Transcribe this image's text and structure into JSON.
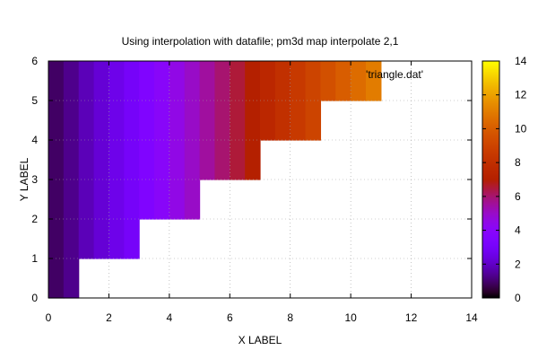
{
  "chart_data": {
    "type": "heatmap",
    "title": "Using interpolation with datafile; pm3d map interpolate 2,1",
    "xlabel": "X LABEL",
    "ylabel": "Y LABEL",
    "xlim": [
      0,
      14
    ],
    "ylim": [
      0,
      6
    ],
    "x_ticks": [
      "0",
      "2",
      "4",
      "6",
      "8",
      "10",
      "12",
      "14"
    ],
    "y_ticks": [
      "0",
      "1",
      "2",
      "3",
      "4",
      "5",
      "6"
    ],
    "grid": true,
    "legend": {
      "label": "'triangle.dat'",
      "position": "top-right"
    },
    "colorbar": {
      "range": [
        0,
        14
      ],
      "ticks": [
        "0",
        "2",
        "4",
        "6",
        "8",
        "10",
        "12",
        "14"
      ],
      "palette": "black-blue-red-yellow"
    },
    "cell_width": 0.5,
    "rows": [
      {
        "y": [
          0,
          1
        ],
        "x_max": 1,
        "values": [
          0.9,
          1.3
        ]
      },
      {
        "y": [
          1,
          2
        ],
        "x_max": 3,
        "values": [
          0.9,
          1.3,
          1.8,
          2.2,
          2.6,
          3.0
        ]
      },
      {
        "y": [
          2,
          3
        ],
        "x_max": 5,
        "values": [
          0.9,
          1.3,
          1.8,
          2.2,
          2.6,
          3.0,
          3.5,
          4.0,
          4.5,
          5.0
        ]
      },
      {
        "y": [
          3,
          4
        ],
        "x_max": 7,
        "values": [
          0.9,
          1.3,
          1.8,
          2.2,
          2.6,
          3.0,
          3.5,
          4.0,
          4.5,
          5.0,
          5.5,
          6.0,
          6.5,
          7.0
        ]
      },
      {
        "y": [
          4,
          5
        ],
        "x_max": 9,
        "values": [
          0.9,
          1.3,
          1.8,
          2.2,
          2.6,
          3.0,
          3.5,
          4.0,
          4.5,
          5.0,
          5.5,
          6.0,
          6.5,
          7.0,
          7.5,
          8.0,
          8.5,
          9.0
        ]
      },
      {
        "y": [
          5,
          6
        ],
        "x_max": 11,
        "values": [
          0.9,
          1.3,
          1.8,
          2.2,
          2.6,
          3.0,
          3.5,
          4.0,
          4.5,
          5.0,
          5.5,
          6.0,
          6.5,
          7.0,
          7.5,
          8.0,
          8.5,
          9.0,
          9.5,
          10.0,
          10.5,
          11.0
        ]
      }
    ]
  }
}
